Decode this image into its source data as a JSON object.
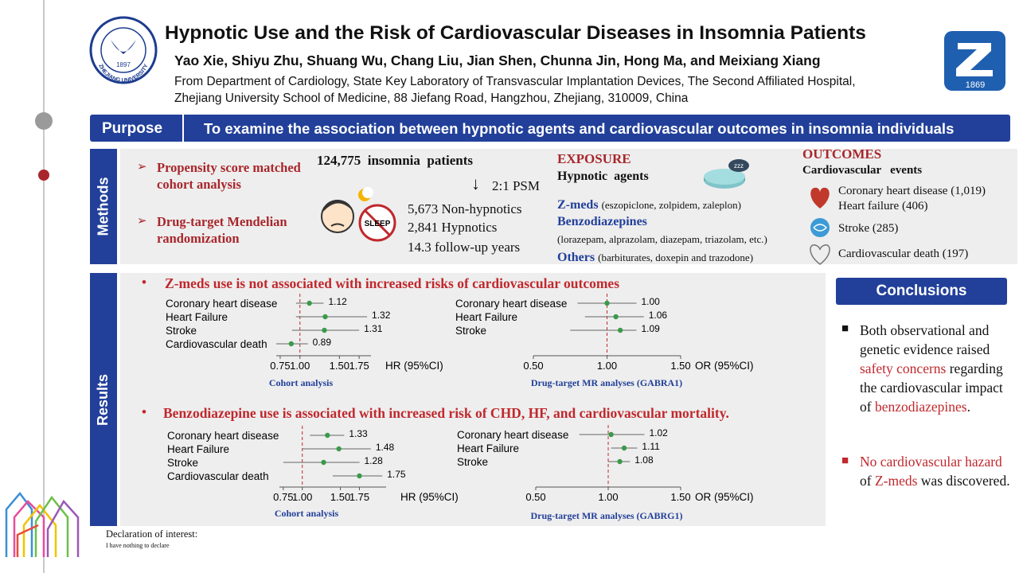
{
  "header": {
    "title": "Hypnotic Use and the Risk of Cardiovascular Diseases in Insomnia Patients",
    "authors": "Yao Xie, Shiyu Zhu, Shuang Wu, Chang Liu, Jian Shen, Chunna Jin, Hong Ma, and Meixiang Xiang",
    "affiliation": [
      "From Department of Cardiology, State Key Laboratory of Transvascular Implantation Devices, The Second Affiliated Hospital,",
      "Zhejiang University School of Medicine, 88 Jiefang Road, Hangzhou, Zhejiang, 310009, China"
    ]
  },
  "logos": {
    "left": {
      "name": "ZHEJIANG UNIVERSITY",
      "year": "1897"
    },
    "right": {
      "year": "1869"
    }
  },
  "purpose": {
    "label": "Purpose",
    "text": "To examine the association between hypnotic agents and cardiovascular outcomes in insomnia individuals"
  },
  "methods": {
    "label": "Methods",
    "designs": [
      "Propensity score matched cohort analysis",
      "Drug-target Mendelian randomization"
    ],
    "cohort": {
      "total": "124,775  insomnia  patients",
      "psm": "2:1 PSM",
      "groups": [
        "5,673 Non-hypnotics",
        "2,841 Hypnotics",
        "14.3 follow-up years"
      ],
      "icon_label": "SLEEP"
    },
    "exposure": {
      "heading": "EXPOSURE",
      "subheading": "Hypnotic  agents",
      "agents": [
        {
          "name": "Z-meds",
          "detail": "(eszopiclone, zolpidem, zaleplon)"
        },
        {
          "name": "Benzodiazepines",
          "detail": "(lorazepam, alprazolam, diazepam, triazolam, etc.)"
        },
        {
          "name": "Others",
          "detail": "(barbiturates, doxepin and trazodone)"
        }
      ]
    },
    "outcomes": {
      "heading": "OUTCOMES",
      "subheading": "Cardiovascular   events",
      "items": [
        "Coronary heart disease (1,019)",
        "Heart failure (406)",
        "Stroke (285)",
        "Cardiovascular death (197)"
      ]
    }
  },
  "results": {
    "label": "Results",
    "findings": [
      {
        "statement": "Z-meds use is not associated with increased risks of cardiovascular outcomes",
        "plots": [
          {
            "type": "forest",
            "categories": [
              "Coronary heart disease",
              "Heart Failure",
              "Stroke",
              "Cardiovascular death"
            ],
            "values": [
              1.12,
              1.32,
              1.31,
              0.89
            ],
            "ci_lower": [
              0.95,
              0.95,
              0.9,
              0.7
            ],
            "ci_upper": [
              1.3,
              1.85,
              1.75,
              1.1
            ],
            "xlim": [
              0.7,
              1.9
            ],
            "xticks": [
              {
                "value": 0.75,
                "label": "0.75"
              },
              {
                "value": 1,
                "label": "1.00"
              },
              {
                "value": 1.5,
                "label": "1.50"
              },
              {
                "value": 1.75,
                "label": "1.75"
              }
            ],
            "x_label": "HR (95%CI)",
            "caption": "Cohort analysis",
            "reference_line": 1,
            "color": "#3a9a4a"
          },
          {
            "type": "forest",
            "categories": [
              "Coronary heart disease",
              "Heart Failure",
              "Stroke"
            ],
            "values": [
              1,
              1.06,
              1.09
            ],
            "value_labels": [
              "1.00",
              "1.06",
              "1.09"
            ],
            "ci_lower": [
              0.8,
              0.85,
              0.75
            ],
            "ci_upper": [
              1.2,
              1.25,
              1.2
            ],
            "xlim": [
              0.5,
              1.5
            ],
            "xticks": [
              {
                "value": 0.5,
                "label": "0.50"
              },
              {
                "value": 1,
                "label": "1.00"
              },
              {
                "value": 1.5,
                "label": "1.50"
              }
            ],
            "x_label": "OR (95%CI)",
            "caption": "Drug-target MR analyses (GABRA1)",
            "reference_line": 1,
            "color": "#3a9a4a"
          }
        ]
      },
      {
        "statement": "Benzodiazepine use is associated with increased risk of CHD, HF, and cardiovascular mortality.",
        "plots": [
          {
            "type": "forest",
            "categories": [
              "Coronary heart disease",
              "Heart Failure",
              "Stroke",
              "Cardiovascular death"
            ],
            "values": [
              1.33,
              1.48,
              1.28,
              1.75
            ],
            "ci_lower": [
              1.1,
              1.0,
              0.75,
              1.4
            ],
            "ci_upper": [
              1.55,
              1.9,
              1.75,
              2.05
            ],
            "xlim": [
              0.7,
              2.1
            ],
            "xticks": [
              {
                "value": 0.75,
                "label": "0.75"
              },
              {
                "value": 1,
                "label": "1.00"
              },
              {
                "value": 1.5,
                "label": "1.50"
              },
              {
                "value": 1.75,
                "label": "1.75"
              }
            ],
            "x_label": "HR (95%CI)",
            "caption": "Cohort analysis",
            "reference_line": 1,
            "color": "#3a9a4a"
          },
          {
            "type": "forest",
            "categories": [
              "Coronary heart disease",
              "Heart Failure",
              "Stroke"
            ],
            "values": [
              1.02,
              1.11,
              1.08
            ],
            "ci_lower": [
              0.8,
              1.02,
              1.0
            ],
            "ci_upper": [
              1.25,
              1.2,
              1.15
            ],
            "xlim": [
              0.5,
              1.5
            ],
            "xticks": [
              {
                "value": 0.5,
                "label": "0.50"
              },
              {
                "value": 1,
                "label": "1.00"
              },
              {
                "value": 1.5,
                "label": "1.50"
              }
            ],
            "x_label": "OR (95%CI)",
            "caption": "Drug-target MR analyses (GABRG1)",
            "reference_line": 1,
            "color": "#3a9a4a"
          }
        ]
      }
    ]
  },
  "conclusions": {
    "label": "Conclusions",
    "items": [
      [
        "Both observational and genetic evidence raised ",
        "safety concerns",
        " regarding the cardiovascular impact of ",
        "benzodiazepines",
        "."
      ],
      [
        "No cardiovascular hazard",
        " of ",
        "Z-meds",
        " was discovered."
      ]
    ]
  },
  "declaration": {
    "heading": "Declaration of interest:",
    "text": "I have nothing to declare"
  }
}
